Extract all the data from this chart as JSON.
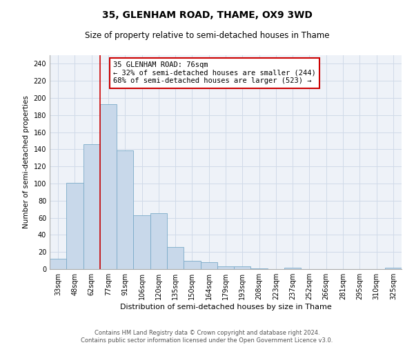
{
  "title": "35, GLENHAM ROAD, THAME, OX9 3WD",
  "subtitle": "Size of property relative to semi-detached houses in Thame",
  "xlabel": "Distribution of semi-detached houses by size in Thame",
  "ylabel": "Number of semi-detached properties",
  "footer_line1": "Contains HM Land Registry data © Crown copyright and database right 2024.",
  "footer_line2": "Contains public sector information licensed under the Open Government Licence v3.0.",
  "categories": [
    "33sqm",
    "48sqm",
    "62sqm",
    "77sqm",
    "91sqm",
    "106sqm",
    "120sqm",
    "135sqm",
    "150sqm",
    "164sqm",
    "179sqm",
    "193sqm",
    "208sqm",
    "223sqm",
    "237sqm",
    "252sqm",
    "266sqm",
    "281sqm",
    "295sqm",
    "310sqm",
    "325sqm"
  ],
  "values": [
    12,
    101,
    146,
    193,
    139,
    63,
    65,
    26,
    10,
    8,
    3,
    3,
    1,
    0,
    2,
    0,
    0,
    0,
    0,
    0,
    2
  ],
  "bar_color": "#c8d8ea",
  "bar_edge_color": "#7aaac8",
  "annotation_text_line1": "35 GLENHAM ROAD: 76sqm",
  "annotation_text_line2": "← 32% of semi-detached houses are smaller (244)",
  "annotation_text_line3": "68% of semi-detached houses are larger (523) →",
  "annotation_box_color": "#ffffff",
  "annotation_box_edge_color": "#cc0000",
  "highlight_line_color": "#cc0000",
  "grid_color": "#d0dae8",
  "background_color": "#eef2f8",
  "ylim": [
    0,
    250
  ],
  "yticks": [
    0,
    20,
    40,
    60,
    80,
    100,
    120,
    140,
    160,
    180,
    200,
    220,
    240
  ],
  "title_fontsize": 10,
  "subtitle_fontsize": 8.5,
  "xlabel_fontsize": 8,
  "ylabel_fontsize": 7.5,
  "tick_fontsize": 7,
  "annotation_fontsize": 7.5,
  "footer_fontsize": 6
}
